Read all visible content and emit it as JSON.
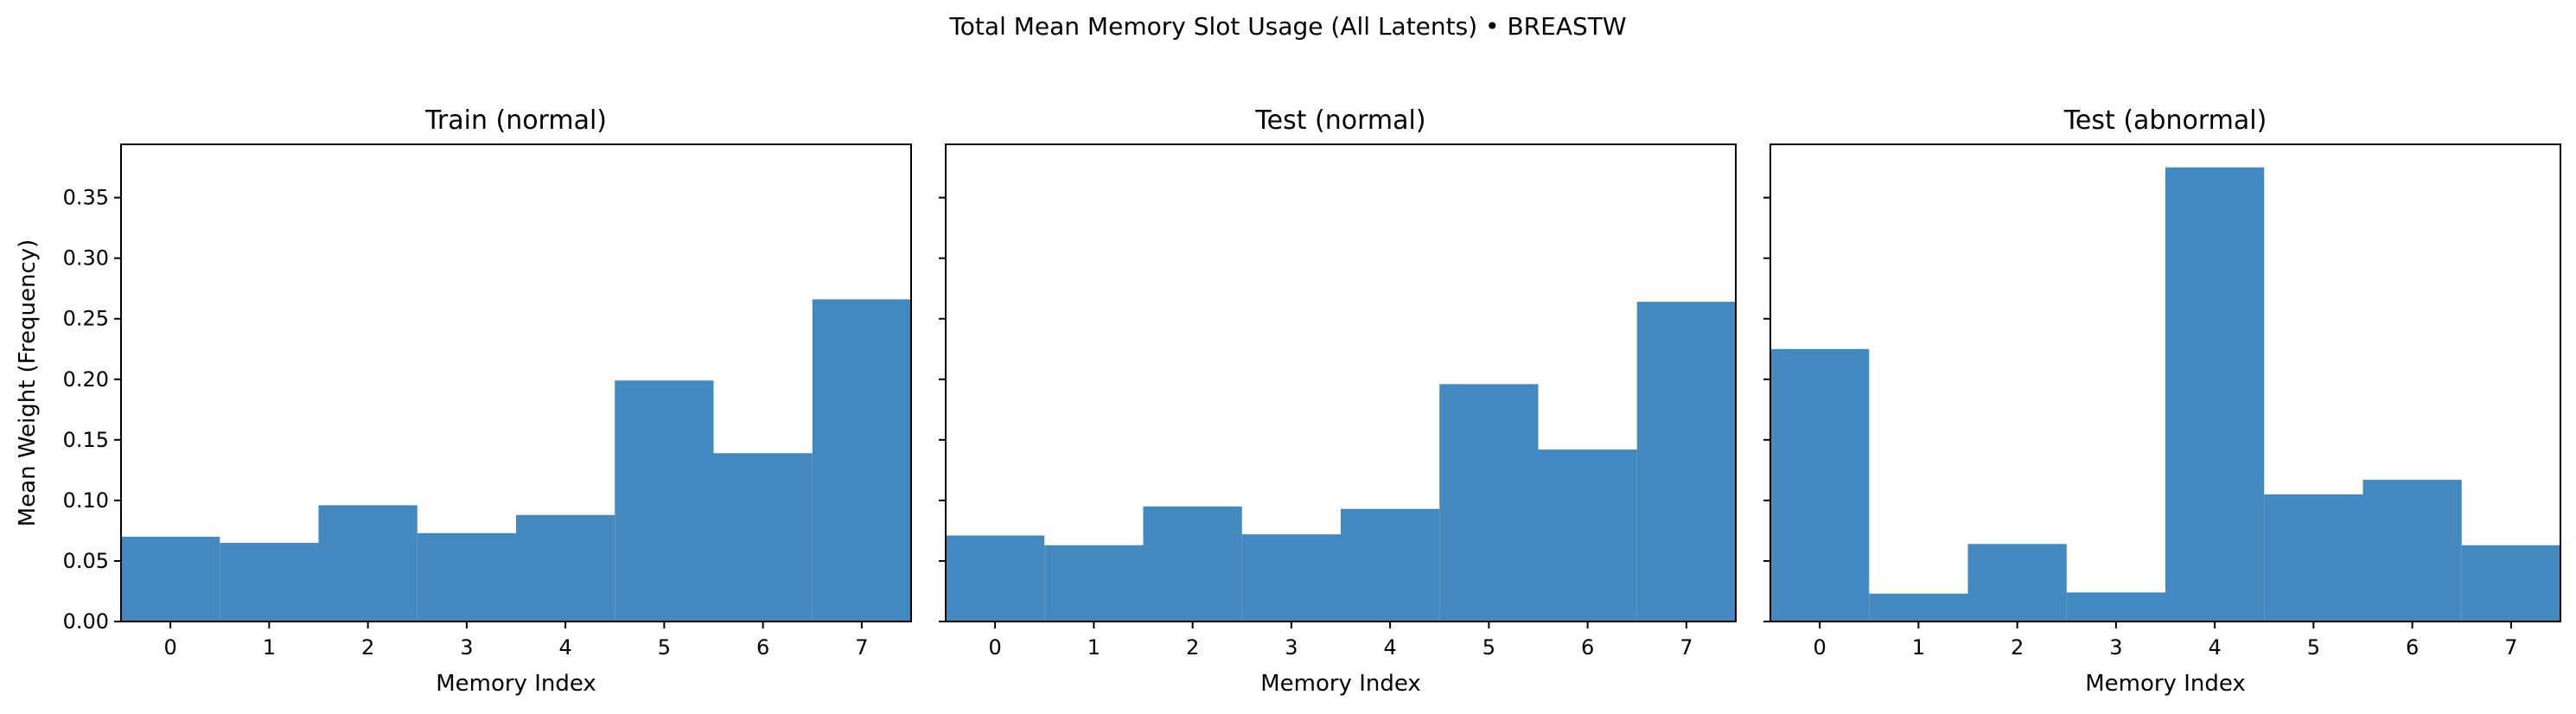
{
  "figure": {
    "suptitle": "Total Mean Memory Slot Usage (All Latents) • BREASTW"
  },
  "colors": {
    "bar": "#4389bf",
    "axis": "#000000"
  },
  "chart_data": [
    {
      "type": "bar",
      "title": "Train (normal)",
      "xlabel": "Memory Index",
      "ylabel": "Mean Weight (Frequency)",
      "categories": [
        "0",
        "1",
        "2",
        "3",
        "4",
        "5",
        "6",
        "7"
      ],
      "values": [
        0.07,
        0.065,
        0.096,
        0.073,
        0.088,
        0.199,
        0.139,
        0.266
      ],
      "ylim": [
        0,
        0.394
      ],
      "yticks": [
        "0.00",
        "0.05",
        "0.10",
        "0.15",
        "0.20",
        "0.25",
        "0.30",
        "0.35"
      ],
      "grid": false
    },
    {
      "type": "bar",
      "title": "Test (normal)",
      "xlabel": "Memory Index",
      "ylabel": "",
      "categories": [
        "0",
        "1",
        "2",
        "3",
        "4",
        "5",
        "6",
        "7"
      ],
      "values": [
        0.071,
        0.063,
        0.095,
        0.072,
        0.093,
        0.196,
        0.142,
        0.264
      ],
      "ylim": [
        0,
        0.394
      ],
      "yticks": [
        "",
        "",
        "",
        "",
        "",
        "",
        "",
        ""
      ],
      "grid": false
    },
    {
      "type": "bar",
      "title": "Test (abnormal)",
      "xlabel": "Memory Index",
      "ylabel": "",
      "categories": [
        "0",
        "1",
        "2",
        "3",
        "4",
        "5",
        "6",
        "7"
      ],
      "values": [
        0.225,
        0.023,
        0.064,
        0.024,
        0.375,
        0.105,
        0.117,
        0.063
      ],
      "ylim": [
        0,
        0.394
      ],
      "yticks": [
        "",
        "",
        "",
        "",
        "",
        "",
        "",
        ""
      ],
      "grid": false
    }
  ]
}
